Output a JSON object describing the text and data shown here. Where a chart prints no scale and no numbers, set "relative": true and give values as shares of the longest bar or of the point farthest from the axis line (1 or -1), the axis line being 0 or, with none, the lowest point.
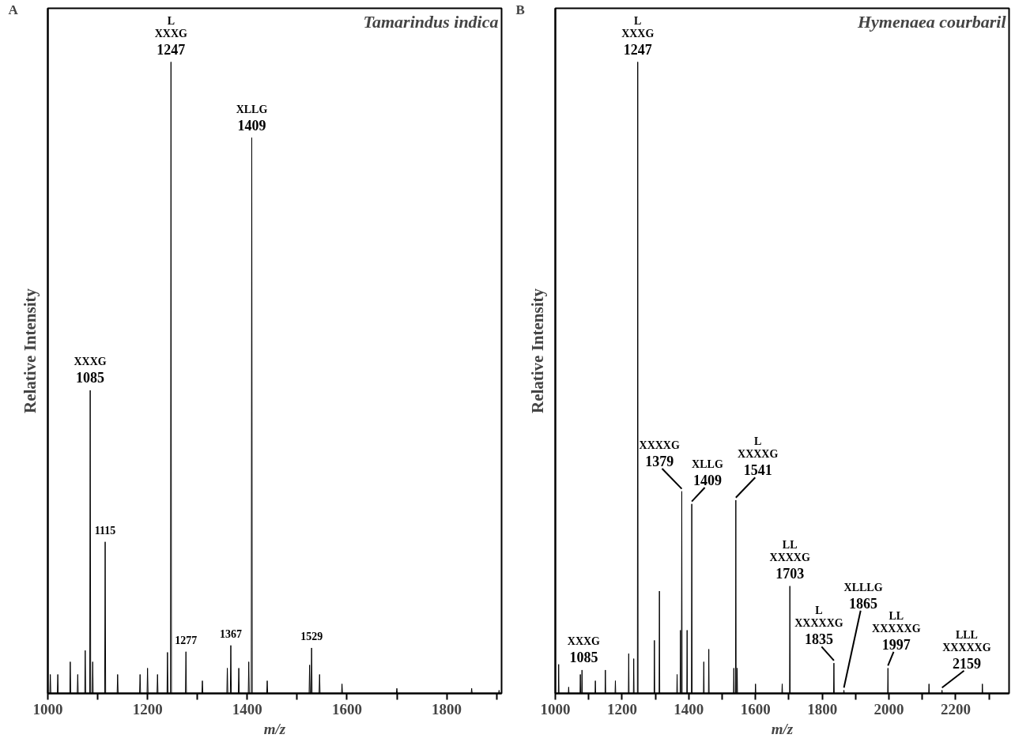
{
  "chart_data": [
    {
      "type": "line",
      "title": "Tamarindus indica",
      "xlabel": "m/z",
      "ylabel": "Relative Intensity",
      "relative": true,
      "tick_labels": "x",
      "xlim": [
        1000,
        1910
      ],
      "xticks": [
        1000,
        {
          "value": 1100,
          "label": null
        },
        1200,
        {
          "value": 1300,
          "label": null
        },
        1400,
        {
          "value": 1500,
          "label": null
        },
        1600,
        {
          "value": 1700,
          "label": null
        },
        1800,
        {
          "value": 1900,
          "label": null
        }
      ],
      "annotations": [
        "A",
        {
          "text": "L\nXXXG\n1247",
          "x": 1247,
          "y": 1
        },
        {
          "text": "XLLG\n1409",
          "x": 1409,
          "y": 0.88
        },
        {
          "text": "XXXG\n1085",
          "x": 1085,
          "y": 0.48
        },
        {
          "text": "1115",
          "x": 1115,
          "y": 0.24
        },
        {
          "text": "1277",
          "x": 1277,
          "y": 0.066
        },
        {
          "text": "1367",
          "x": 1367,
          "y": 0.076
        },
        {
          "text": "1529",
          "x": 1529,
          "y": 0.072
        }
      ],
      "series": [
        {
          "color": "#000000",
          "x": [
            1000,
            1004,
            1005,
            1006,
            1019,
            1020,
            1021,
            1044,
            1045,
            1046,
            1059,
            1060,
            1061,
            1074,
            1075,
            1076,
            1084,
            1085,
            1086,
            1089,
            1090,
            1091,
            1114,
            1115,
            1116,
            1139,
            1140,
            1141,
            1184,
            1185,
            1186,
            1199,
            1200,
            1201,
            1219,
            1220,
            1221,
            1239,
            1240,
            1241,
            1246,
            1247,
            1248,
            1276,
            1277,
            1278,
            1309,
            1310,
            1311,
            1359,
            1360,
            1361,
            1366,
            1367,
            1368,
            1382,
            1383,
            1384,
            1402,
            1403,
            1404,
            1408,
            1409,
            1410,
            1439,
            1440,
            1441,
            1524,
            1525,
            1526,
            1528,
            1529,
            1530,
            1544,
            1545,
            1546,
            1589,
            1590,
            1591,
            1699,
            1700,
            1701,
            1849,
            1850,
            1851,
            1904,
            1905,
            1906,
            1910
          ],
          "values": [
            0,
            0,
            0.03,
            0,
            0,
            0.03,
            0,
            0,
            0.05,
            0,
            0,
            0.03,
            0,
            0,
            0.068,
            0,
            0,
            0.48,
            0,
            0,
            0.05,
            0,
            0,
            0.24,
            0,
            0,
            0.03,
            0,
            0,
            0.03,
            0,
            0,
            0.04,
            0,
            0,
            0.03,
            0,
            0,
            0.065,
            0,
            0,
            1,
            0,
            0,
            0.066,
            0,
            0,
            0.02,
            0,
            0,
            0.04,
            0,
            0,
            0.076,
            0,
            0,
            0.04,
            0,
            0,
            0.05,
            0,
            0,
            0.88,
            0,
            0,
            0.02,
            0,
            0,
            0.045,
            0,
            0,
            0.072,
            0,
            0,
            0.03,
            0,
            0,
            0.015,
            0,
            0,
            0.008,
            0,
            0,
            0.008,
            0,
            0,
            0.005,
            0,
            0
          ]
        }
      ]
    },
    {
      "type": "line",
      "title": "Hymenaea courbaril",
      "xlabel": "m/z",
      "ylabel": "Relative Intensity",
      "relative": true,
      "tick_labels": "x",
      "xlim": [
        1000,
        2360
      ],
      "xticks": [
        1000,
        {
          "value": 1100,
          "label": null
        },
        1200,
        {
          "value": 1300,
          "label": null
        },
        1400,
        {
          "value": 1500,
          "label": null
        },
        1600,
        {
          "value": 1700,
          "label": null
        },
        1800,
        {
          "value": 1900,
          "label": null
        },
        2000,
        {
          "value": 2100,
          "label": null
        },
        2200,
        {
          "value": 2300,
          "label": null
        }
      ],
      "annotations": [
        "B",
        {
          "text": "XXXG\n1085",
          "x": 1085,
          "y": 0.037
        },
        {
          "text": "L\nXXXG\n1247",
          "x": 1247,
          "y": 1
        },
        {
          "text": "XXXXG\n1379",
          "x": 1379,
          "y": 0.32
        },
        {
          "text": "XLLG\n1409",
          "x": 1409,
          "y": 0.3
        },
        {
          "text": "L\nXXXXG\n1541",
          "x": 1541,
          "y": 0.306
        },
        {
          "text": "LL\nXXXXG\n1703",
          "x": 1703,
          "y": 0.17
        },
        {
          "text": "L\nXXXXXG\n1835",
          "x": 1835,
          "y": 0.048
        },
        {
          "text": "XLLLG\n1865",
          "x": 1865,
          "y": 0.005
        },
        {
          "text": "LL\nXXXXXG\n1997",
          "x": 1997,
          "y": 0.04
        },
        {
          "text": "LLL\nXXXXXG\n2159",
          "x": 2159,
          "y": 0.005
        }
      ],
      "series": [
        {
          "color": "#000000",
          "x": [
            1000,
            1009,
            1010,
            1011,
            1039,
            1040,
            1041,
            1074,
            1075,
            1076,
            1079,
            1080,
            1081,
            1119,
            1120,
            1121,
            1149,
            1150,
            1151,
            1179,
            1180,
            1181,
            1219,
            1220,
            1221,
            1234,
            1235,
            1236,
            1246,
            1247,
            1248,
            1296,
            1297,
            1298,
            1311,
            1312,
            1313,
            1364,
            1365,
            1366,
            1374,
            1375,
            1376,
            1378,
            1379,
            1380,
            1394,
            1395,
            1396,
            1408,
            1409,
            1410,
            1444,
            1445,
            1446,
            1459,
            1460,
            1461,
            1534,
            1535,
            1536,
            1540,
            1541,
            1542,
            1544,
            1545,
            1546,
            1599,
            1600,
            1601,
            1679,
            1680,
            1681,
            1702,
            1703,
            1704,
            1834,
            1835,
            1836,
            1864,
            1865,
            1866,
            1996,
            1997,
            1998,
            2119,
            2120,
            2121,
            2158,
            2159,
            2160,
            2279,
            2280,
            2281,
            2360
          ],
          "values": [
            0,
            0,
            0.046,
            0,
            0,
            0.01,
            0,
            0,
            0.03,
            0,
            0,
            0.037,
            0,
            0,
            0.02,
            0,
            0,
            0.037,
            0,
            0,
            0.02,
            0,
            0,
            0.063,
            0,
            0,
            0.055,
            0,
            0,
            1,
            0,
            0,
            0.084,
            0,
            0,
            0.162,
            0,
            0,
            0.03,
            0,
            0,
            0.1,
            0,
            0,
            0.32,
            0,
            0,
            0.1,
            0,
            0,
            0.3,
            0,
            0,
            0.05,
            0,
            0,
            0.07,
            0,
            0,
            0.04,
            0,
            0,
            0.306,
            0,
            0,
            0.04,
            0,
            0,
            0.015,
            0,
            0,
            0.015,
            0,
            0,
            0.17,
            0,
            0,
            0.048,
            0,
            0,
            0.005,
            0,
            0,
            0.04,
            0,
            0,
            0.015,
            0,
            0,
            0.005,
            0,
            0,
            0.015,
            0,
            0
          ]
        }
      ]
    }
  ]
}
